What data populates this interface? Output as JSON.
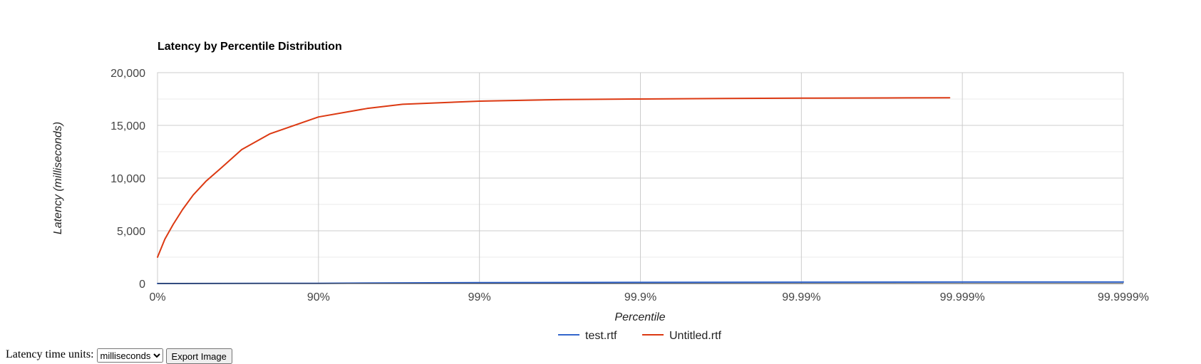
{
  "chart_data": {
    "type": "line",
    "title": "Latency by Percentile Distribution",
    "xlabel": "Percentile",
    "ylabel": "Latency (milliseconds)",
    "x_scale": "percentile-log (1/(1-p))",
    "x_ticks": [
      "0%",
      "90%",
      "99%",
      "99.9%",
      "99.99%",
      "99.999%",
      "99.9999%"
    ],
    "y_ticks": [
      "0",
      "5,000",
      "10,000",
      "15,000",
      "20,000"
    ],
    "ylim": [
      0,
      20000
    ],
    "grid": true,
    "legend_position": "bottom",
    "series": [
      {
        "name": "test.rtf",
        "color": "#3366cc",
        "points": [
          {
            "x": "0%",
            "y": 0
          },
          {
            "x": "90%",
            "y": 20
          },
          {
            "x": "99%",
            "y": 90
          },
          {
            "x": "99.9%",
            "y": 110
          },
          {
            "x": "99.99%",
            "y": 130
          },
          {
            "x": "99.999%",
            "y": 140
          },
          {
            "x": "99.9999%",
            "y": 145
          }
        ]
      },
      {
        "name": "Untitled.rtf",
        "color": "#dc3912",
        "points": [
          {
            "x": "0%",
            "y": 2500
          },
          {
            "x": "10%",
            "y": 4200
          },
          {
            "x": "20%",
            "y": 5600
          },
          {
            "x": "30%",
            "y": 7000
          },
          {
            "x": "40%",
            "y": 8400
          },
          {
            "x": "50%",
            "y": 9700
          },
          {
            "x": "60%",
            "y": 11000
          },
          {
            "x": "70%",
            "y": 12700
          },
          {
            "x": "80%",
            "y": 14200
          },
          {
            "x": "90%",
            "y": 15800
          },
          {
            "x": "95%",
            "y": 16600
          },
          {
            "x": "97%",
            "y": 17000
          },
          {
            "x": "99%",
            "y": 17300
          },
          {
            "x": "99.7%",
            "y": 17450
          },
          {
            "x": "99.9%",
            "y": 17500
          },
          {
            "x": "99.97%",
            "y": 17550
          },
          {
            "x": "99.99%",
            "y": 17580
          },
          {
            "x": "99.997%",
            "y": 17600
          },
          {
            "x": "99.9988%",
            "y": 17620
          }
        ]
      }
    ]
  },
  "controls": {
    "units_label": "Latency time units:",
    "units_selected": "milliseconds",
    "export_label": "Export Image"
  }
}
